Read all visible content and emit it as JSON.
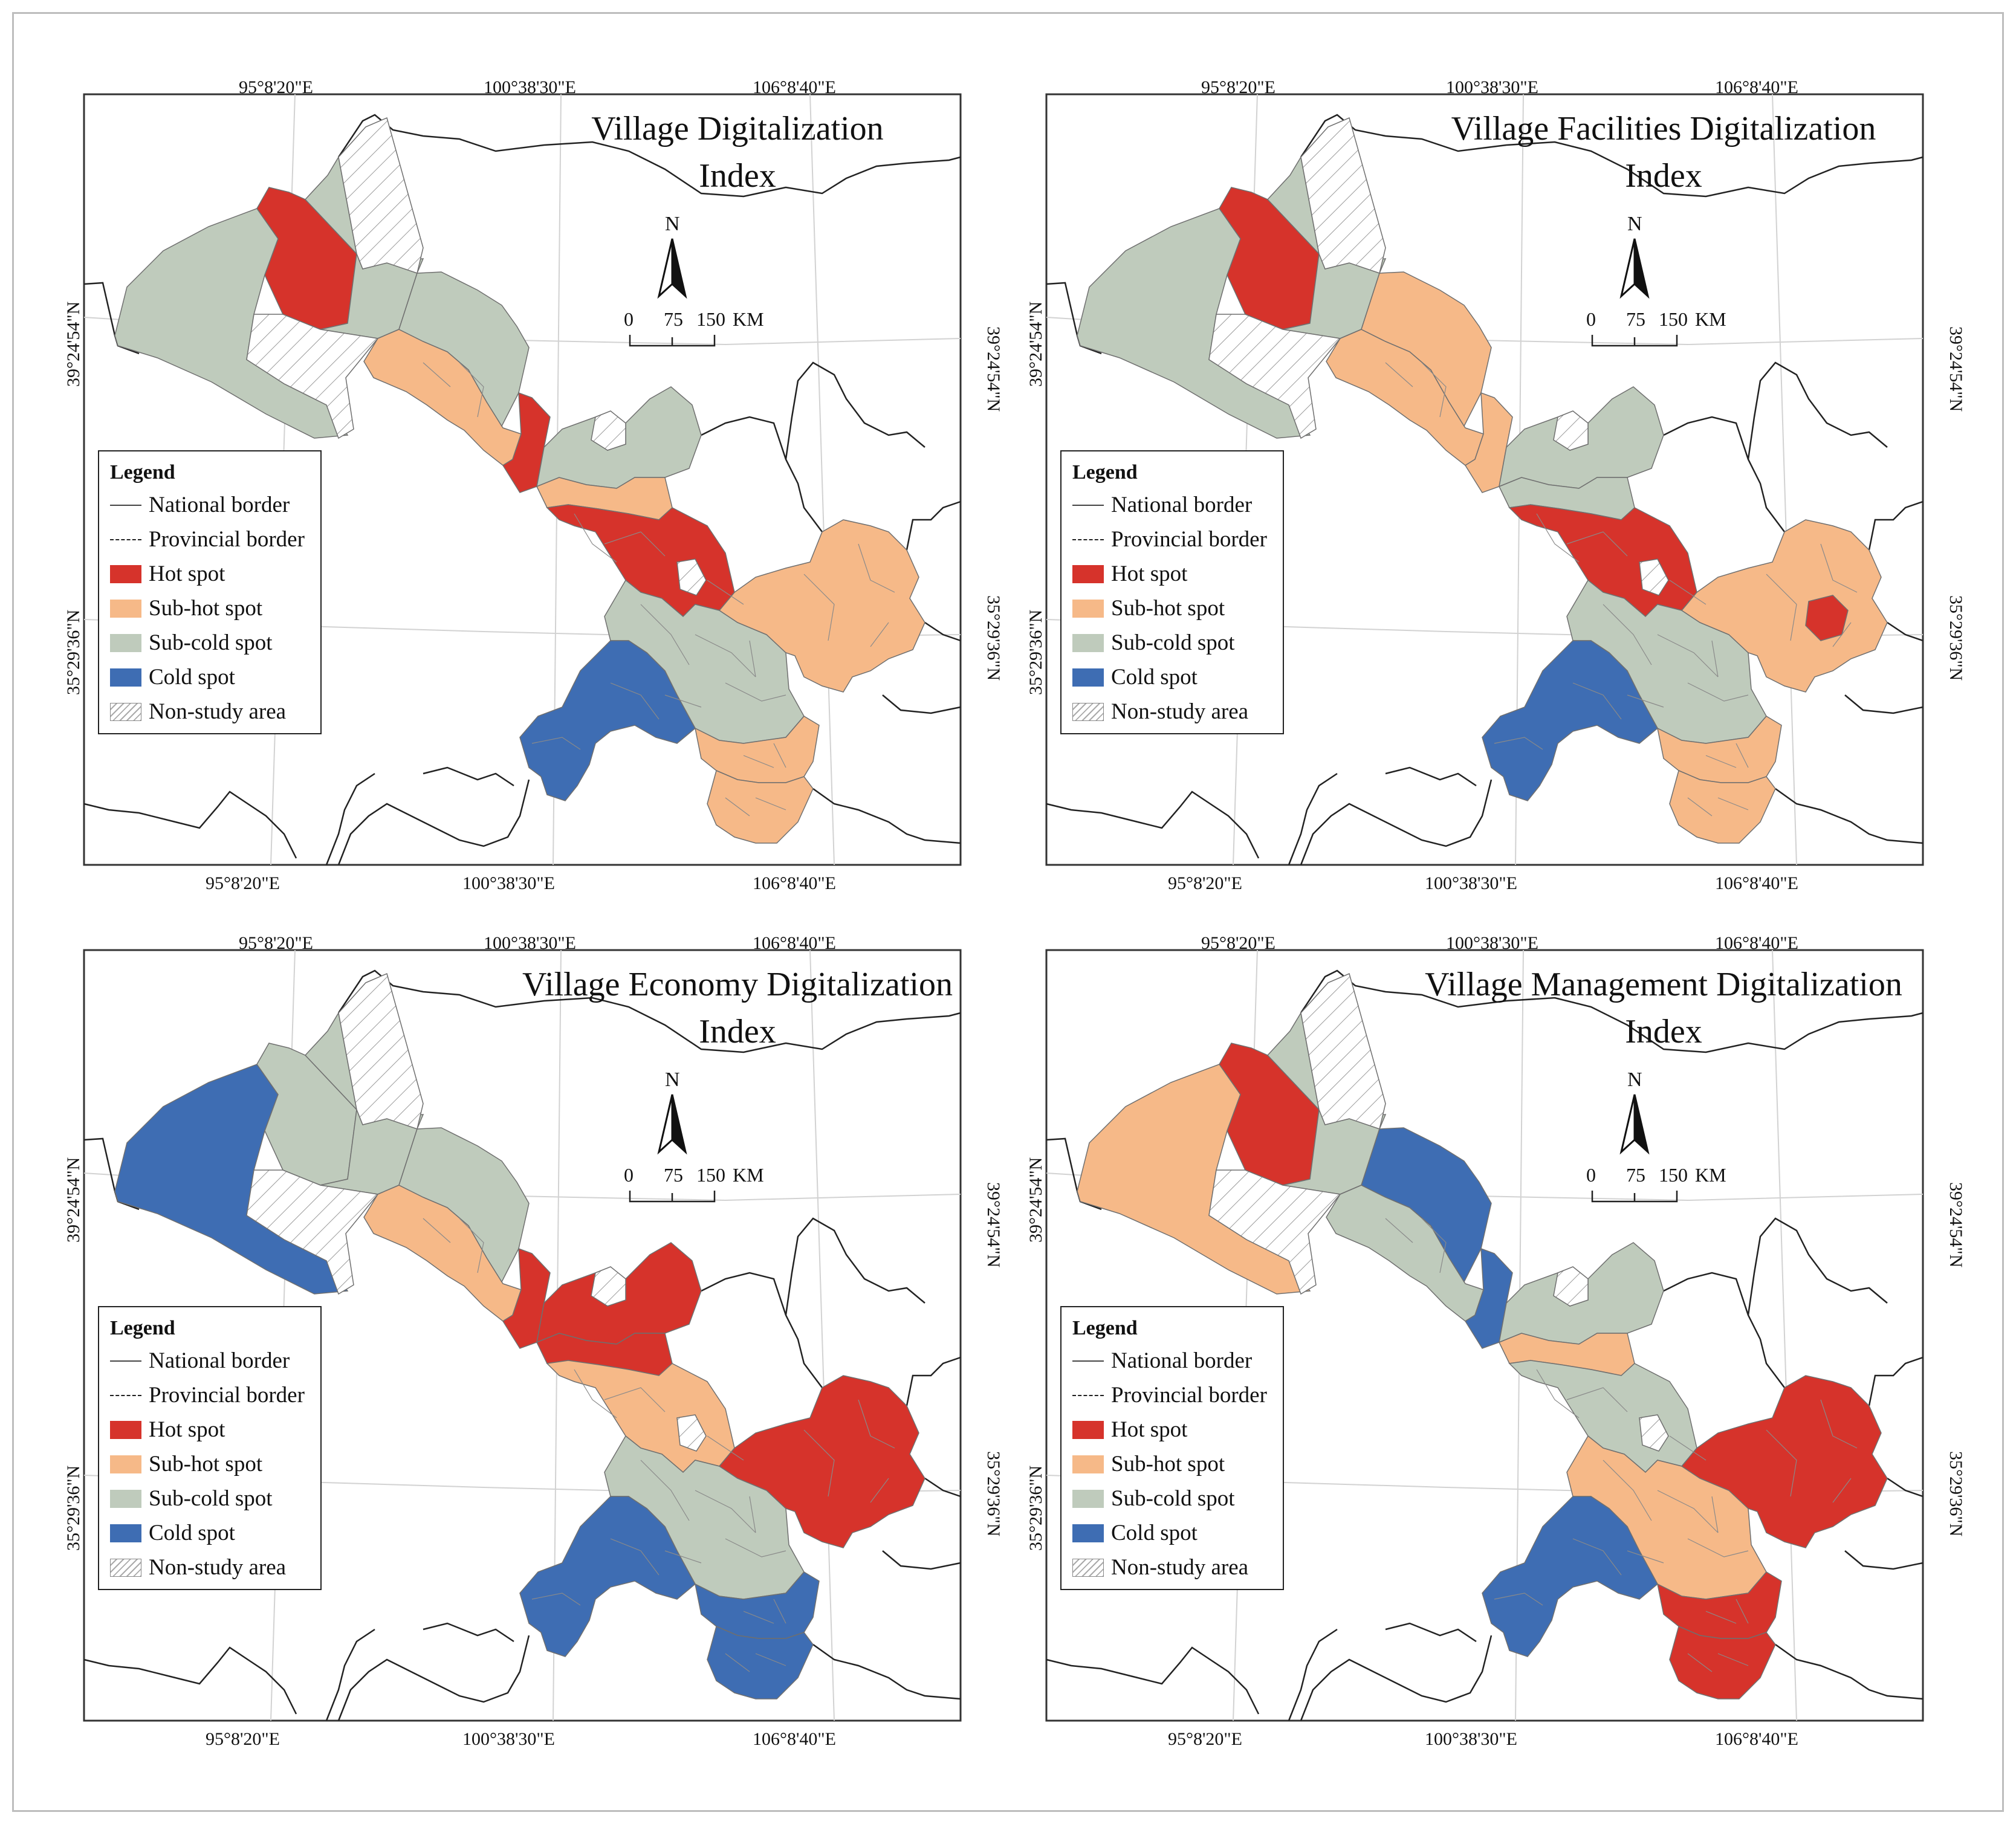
{
  "colors": {
    "hot": "#d6332b",
    "subhot": "#f6b988",
    "subcold": "#bfcbbc",
    "cold": "#3e6db3",
    "nonstudy": "#ffffff",
    "border": "#333333"
  },
  "coords": {
    "top": [
      "95°8'20\"E",
      "100°38'30\"E",
      "106°8'40\"E"
    ],
    "bottom": [
      "95°8'20\"E",
      "100°38'30\"E",
      "106°8'40\"E"
    ],
    "left": [
      "39°24'54\"N",
      "35°29'36\"N"
    ],
    "right": [
      "39°24'54\"N",
      "35°29'36\"N"
    ]
  },
  "north": {
    "letter": "N"
  },
  "scale": {
    "labels": [
      "0",
      "75",
      "150"
    ],
    "unit": "KM"
  },
  "legend": {
    "title": "Legend",
    "items": [
      {
        "label": "National border",
        "kind": "line"
      },
      {
        "label": "Provincial border",
        "kind": "dash"
      },
      {
        "label": "Hot spot",
        "kind": "hot"
      },
      {
        "label": "Sub-hot spot",
        "kind": "subhot"
      },
      {
        "label": "Sub-cold spot",
        "kind": "subcold"
      },
      {
        "label": "Cold spot",
        "kind": "cold"
      },
      {
        "label": "Non-study area",
        "kind": "nonstudy"
      }
    ]
  },
  "panels": [
    {
      "title_line1": "Village Digitalization",
      "title_line2": "Index",
      "zones": {
        "nw_west": "subcold",
        "nw_north": "hot",
        "nw_east": "subcold",
        "corridor_west": "subhot",
        "corridor_mid": "subcold",
        "wuwei": "hot",
        "ningxia": "subcold",
        "central_north": "subhot",
        "central_core": "hot",
        "pingliang": "subhot",
        "gannan": "cold",
        "dingxi": "subcold",
        "tianshui": "subhot",
        "longnan": "subhot"
      }
    },
    {
      "title_line1": "Village Facilities Digitalization",
      "title_line2": "Index",
      "zones": {
        "nw_west": "subcold",
        "nw_north": "hot",
        "nw_east": "subcold",
        "corridor_west": "subhot",
        "corridor_mid": "subhot",
        "wuwei": "subhot",
        "ningxia": "subcold",
        "central_north": "subcold",
        "central_core": "hot",
        "pingliang": "subhot",
        "pingliang_core": "hot",
        "gannan": "cold",
        "dingxi": "subcold",
        "tianshui": "subhot",
        "longnan": "subhot"
      }
    },
    {
      "title_line1": "Village Economy Digitalization",
      "title_line2": "Index",
      "zones": {
        "nw_west": "cold",
        "nw_north": "subcold",
        "nw_east": "subcold",
        "corridor_west": "subhot",
        "corridor_mid": "subcold",
        "wuwei": "hot",
        "ningxia": "hot",
        "central_north": "hot",
        "central_core": "subhot",
        "pingliang": "hot",
        "gannan": "cold",
        "dingxi": "subcold",
        "tianshui": "cold",
        "longnan": "cold"
      }
    },
    {
      "title_line1": "Village Management Digitalization",
      "title_line2": "Index",
      "zones": {
        "nw_west": "subhot",
        "nw_north": "hot",
        "nw_east": "subcold",
        "corridor_west": "subcold",
        "corridor_mid": "cold",
        "wuwei": "cold",
        "ningxia": "subcold",
        "central_north": "subhot",
        "central_core": "subcold",
        "pingliang": "hot",
        "gannan": "cold",
        "dingxi": "subhot",
        "tianshui": "hot",
        "longnan": "hot"
      }
    }
  ]
}
